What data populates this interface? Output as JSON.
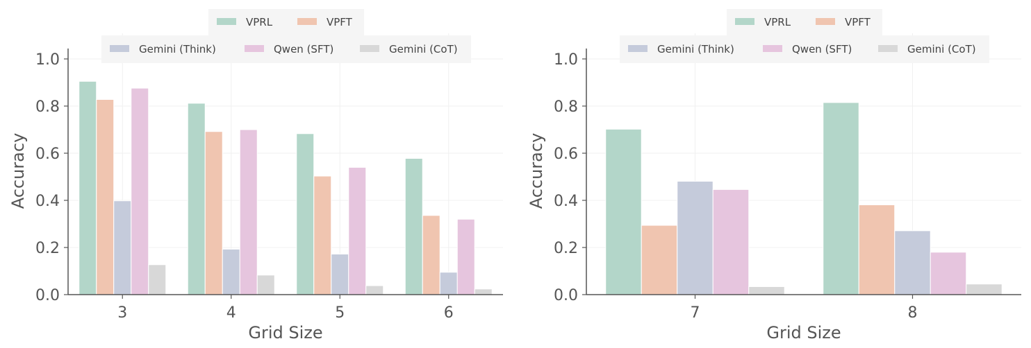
{
  "chart_data": [
    {
      "type": "bar",
      "xlabel": "Grid Size",
      "ylabel": "Accuracy",
      "ylim": [
        0,
        1.05
      ],
      "yticks": [
        "0.0",
        "0.2",
        "0.4",
        "0.6",
        "0.8",
        "1.0"
      ],
      "categories": [
        "3",
        "4",
        "5",
        "6"
      ],
      "grid": true,
      "legend_position": "top-center",
      "series": [
        {
          "name": "VPRL",
          "color": "#b3d6c9",
          "values": [
            0.905,
            0.812,
            0.683,
            0.578
          ]
        },
        {
          "name": "VPFT",
          "color": "#f0c5b0",
          "values": [
            0.828,
            0.692,
            0.503,
            0.336
          ]
        },
        {
          "name": "Gemini (Think)",
          "color": "#c5cbdb",
          "values": [
            0.398,
            0.193,
            0.172,
            0.095
          ]
        },
        {
          "name": "Qwen (SFT)",
          "color": "#e6c5de",
          "values": [
            0.876,
            0.7,
            0.54,
            0.32
          ]
        },
        {
          "name": "Gemini (CoT)",
          "color": "#d8d8d8",
          "values": [
            0.127,
            0.083,
            0.038,
            0.024
          ]
        }
      ]
    },
    {
      "type": "bar",
      "xlabel": "Grid Size",
      "ylabel": "Accuracy",
      "ylim": [
        0,
        1.05
      ],
      "yticks": [
        "0.0",
        "0.2",
        "0.4",
        "0.6",
        "0.8",
        "1.0"
      ],
      "categories": [
        "7",
        "8"
      ],
      "grid": true,
      "legend_position": "top-center",
      "series": [
        {
          "name": "VPRL",
          "color": "#b3d6c9",
          "values": [
            0.702,
            0.815
          ]
        },
        {
          "name": "VPFT",
          "color": "#f0c5b0",
          "values": [
            0.294,
            0.381
          ]
        },
        {
          "name": "Gemini (Think)",
          "color": "#c5cbdb",
          "values": [
            0.481,
            0.271
          ]
        },
        {
          "name": "Qwen (SFT)",
          "color": "#e6c5de",
          "values": [
            0.446,
            0.18
          ]
        },
        {
          "name": "Gemini (CoT)",
          "color": "#d8d8d8",
          "values": [
            0.034,
            0.045
          ]
        }
      ]
    }
  ]
}
